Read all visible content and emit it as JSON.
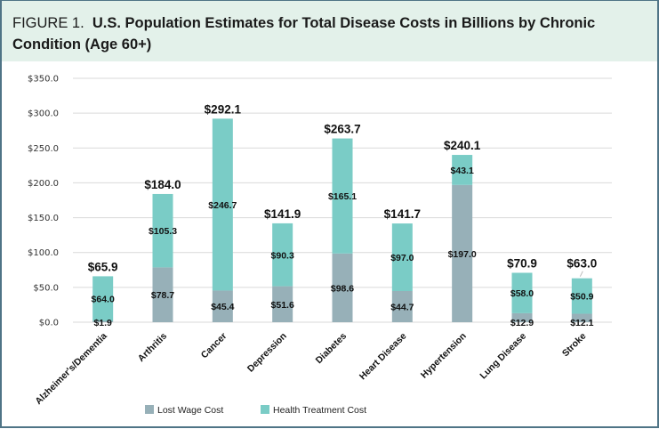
{
  "figure": {
    "label": "FIGURE 1.",
    "title": "U.S. Population Estimates for Total Disease Costs in Billions by Chronic Condition (Age 60+)"
  },
  "colors": {
    "header_bg": "#e3f1ea",
    "border": "#4f7486",
    "lost_wage": "#97b0b8",
    "health_treatment": "#7accc6",
    "gridline": "#d9d9d9"
  },
  "chart_data": {
    "type": "bar",
    "stacked": true,
    "title": "U.S. Population Estimates for Total Disease Costs in Billions by Chronic Condition (Age 60+)",
    "xlabel": "",
    "ylabel": "",
    "ylim": [
      0,
      350
    ],
    "yticks": [
      0,
      50,
      100,
      150,
      200,
      250,
      300,
      350
    ],
    "ytick_labels": [
      "$0.0",
      "$50.0",
      "$100.0",
      "$150.0",
      "$200.0",
      "$250.0",
      "$300.0",
      "$350.0"
    ],
    "grid": true,
    "legend_position": "bottom",
    "categories": [
      "Alzheimer's/Dementia",
      "Arthritis",
      "Cancer",
      "Depression",
      "Diabetes",
      "Heart Disease",
      "Hypertension",
      "Lung Disease",
      "Stroke"
    ],
    "series": [
      {
        "name": "Lost Wage Cost",
        "values": [
          1.9,
          78.7,
          45.4,
          51.6,
          98.6,
          44.7,
          197.0,
          12.9,
          12.1
        ],
        "labels": [
          "$1.9",
          "$78.7",
          "$45.4",
          "$51.6",
          "$98.6",
          "$44.7",
          "$197.0",
          "$12.9",
          "$12.1"
        ]
      },
      {
        "name": "Health Treatment Cost",
        "values": [
          64.0,
          105.3,
          246.7,
          90.3,
          165.1,
          97.0,
          43.1,
          58.0,
          50.9
        ],
        "labels": [
          "$64.0",
          "$105.3",
          "$246.7",
          "$90.3",
          "$165.1",
          "$97.0",
          "$43.1",
          "$58.0",
          "$50.9"
        ]
      }
    ],
    "totals": [
      65.9,
      184.0,
      292.1,
      141.9,
      263.7,
      141.7,
      240.1,
      70.9,
      63.0
    ],
    "total_labels": [
      "$65.9",
      "$184.0",
      "$292.1",
      "$141.9",
      "$263.7",
      "$141.7",
      "$240.1",
      "$70.9",
      "$63.0"
    ]
  }
}
